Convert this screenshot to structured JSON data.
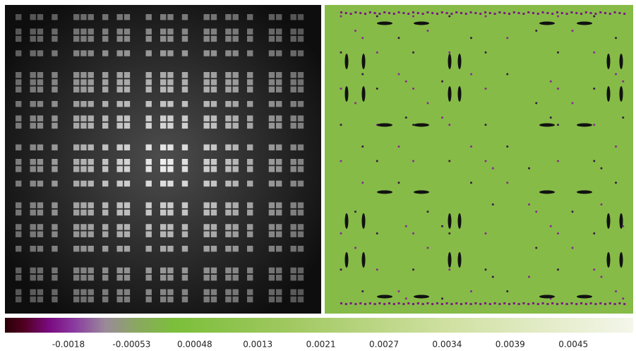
{
  "colorbar": {
    "tick_labels": [
      "-0.0018",
      "-0.00053",
      "0.00048",
      "0.0013",
      "0.0021",
      "0.0027",
      "0.0034",
      "0.0039",
      "0.0045"
    ]
  }
}
